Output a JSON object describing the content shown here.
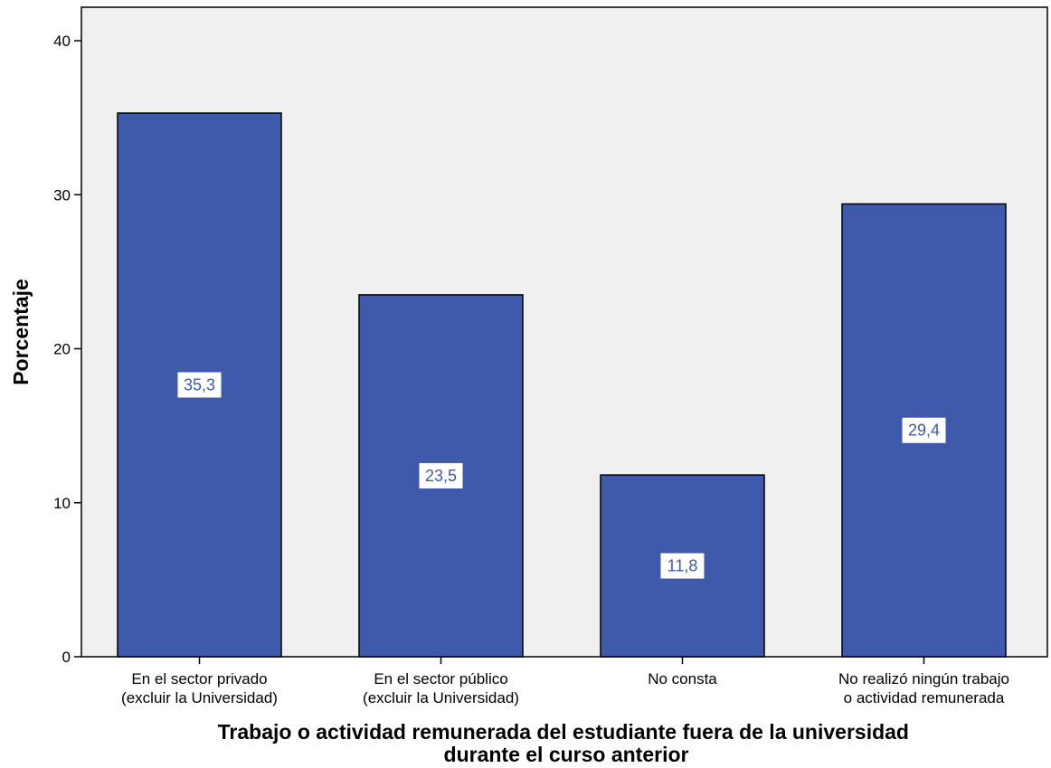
{
  "chart_data": {
    "type": "bar",
    "categories": [
      [
        "En el sector privado",
        "(excluir la Universidad)"
      ],
      [
        "En el sector público",
        "(excluir la Universidad)"
      ],
      [
        "No consta"
      ],
      [
        "No realizó ningún trabajo",
        "o actividad remunerada"
      ]
    ],
    "values": [
      35.3,
      23.5,
      11.8,
      29.4
    ],
    "data_labels": [
      "35,3",
      "23,5",
      "11,8",
      "29,4"
    ],
    "xlabel": [
      "Trabajo o actividad remunerada del estudiante fuera de la universidad",
      "durante el curso anterior"
    ],
    "ylabel": "Porcentaje",
    "ylim": [
      0,
      40
    ],
    "yticks": [
      0,
      10,
      20,
      30,
      40
    ],
    "grid": false,
    "legend": "none",
    "colors": {
      "bar": "#3f59ab",
      "bar_border": "#000000",
      "plot_background": "#f0f0f0",
      "label_text": "#3f59ab"
    }
  }
}
